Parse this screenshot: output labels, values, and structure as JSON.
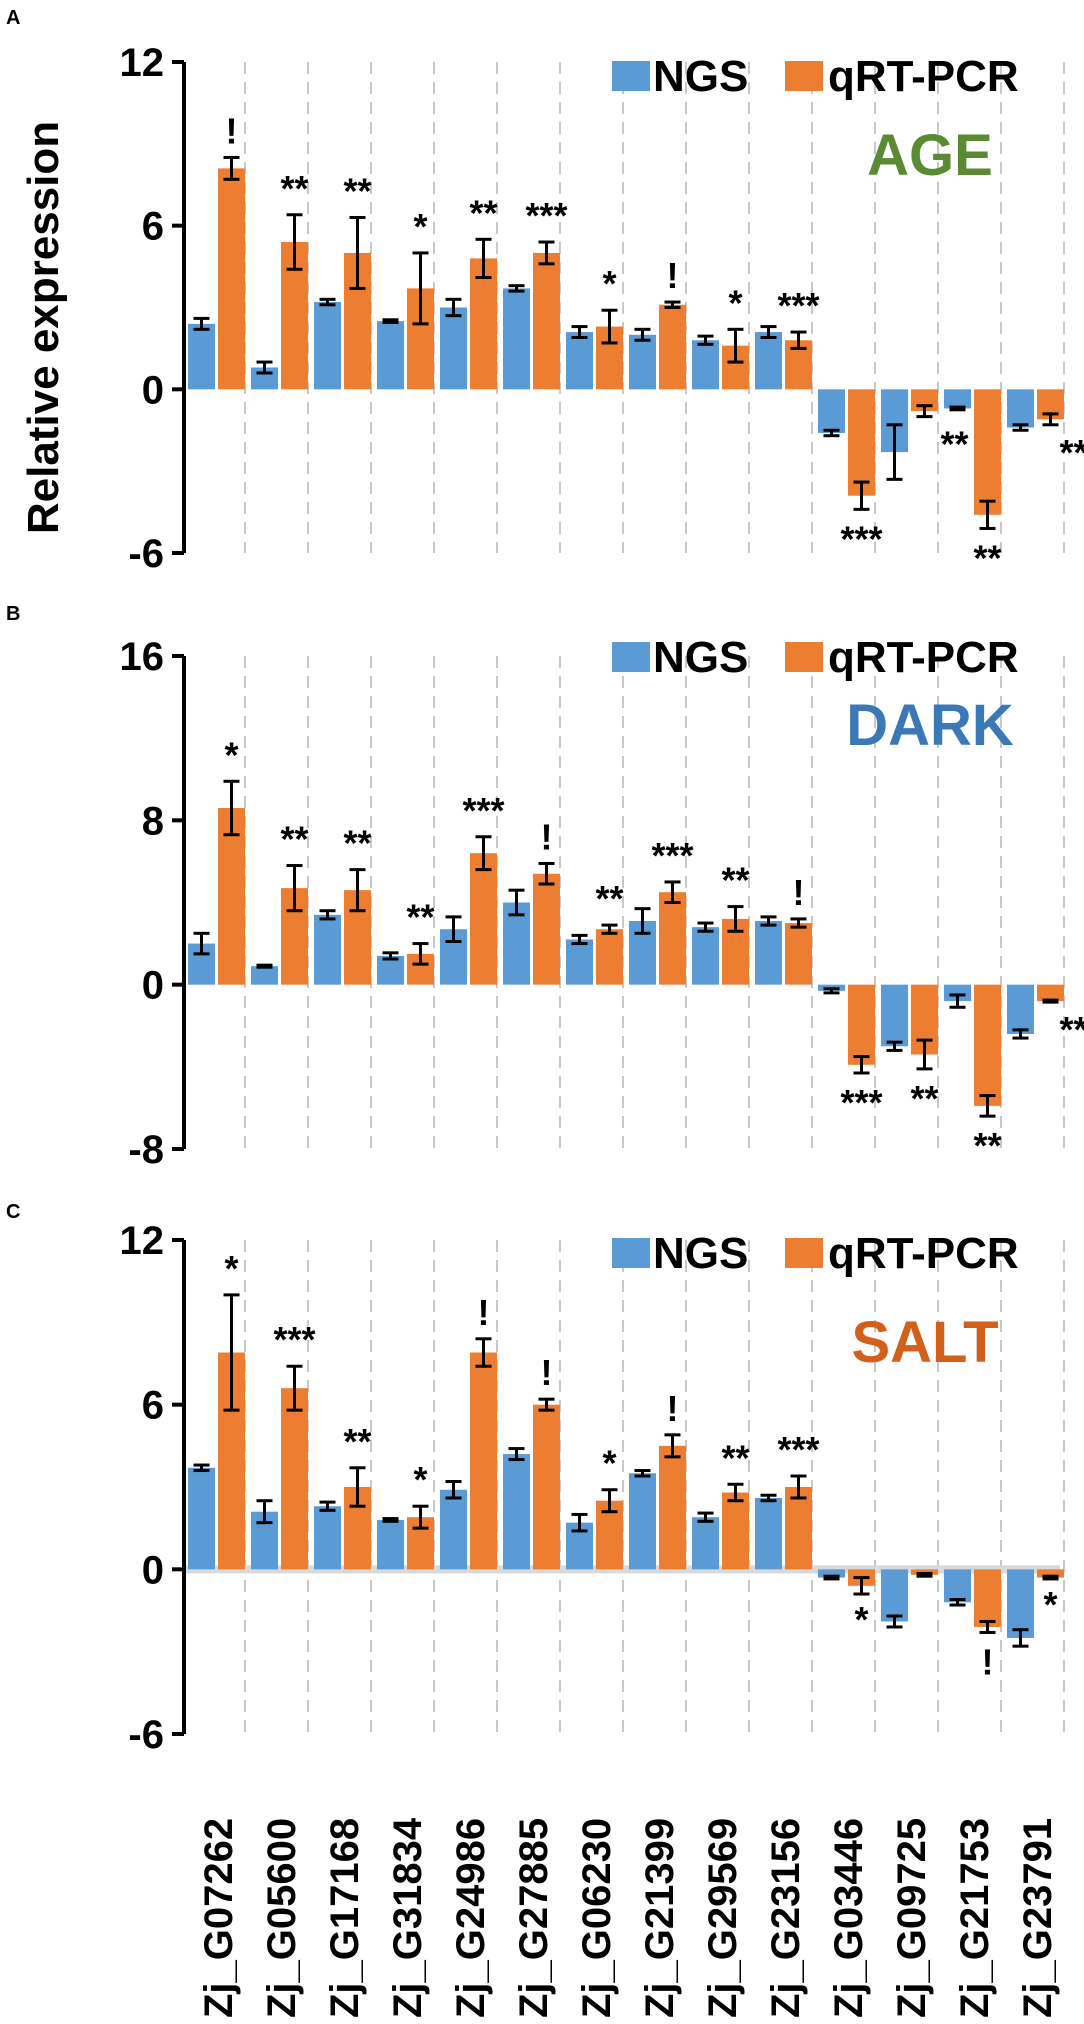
{
  "chart_data": [
    {
      "type": "bar",
      "panel": "A",
      "condition": "AGE",
      "condition_color": "#5a8a32",
      "ylabel": "Relative expression",
      "ylim": [
        -6,
        12
      ],
      "yticks": [
        "12",
        "6",
        "0",
        "-6"
      ],
      "ytick_values": [
        12,
        6,
        0,
        -6
      ],
      "legend": [
        "NGS",
        "qRT-PCR"
      ],
      "categories": [
        "Zj_G07262",
        "Zj_G05600",
        "Zj_G17168",
        "Zj_G31834",
        "Zj_G24986",
        "Zj_G27885",
        "Zj_G06230",
        "Zj_G21399",
        "Zj_G29569",
        "Zj_G23156",
        "Zj_G03446",
        "Zj_G09725",
        "Zj_G21753",
        "Zj_G23791"
      ],
      "series": [
        {
          "name": "NGS",
          "values": [
            2.4,
            0.8,
            3.2,
            2.5,
            3.0,
            3.7,
            2.1,
            2.0,
            1.8,
            2.1,
            -1.6,
            -2.3,
            -0.7,
            -1.4
          ],
          "errors": [
            0.2,
            0.2,
            0.1,
            0.05,
            0.3,
            0.1,
            0.2,
            0.2,
            0.15,
            0.2,
            0.1,
            1.0,
            0.05,
            0.1
          ]
        },
        {
          "name": "qRT-PCR",
          "values": [
            8.1,
            5.4,
            5.0,
            3.7,
            4.8,
            5.0,
            2.3,
            3.1,
            1.6,
            1.8,
            -3.9,
            -0.8,
            -4.6,
            -1.1
          ],
          "errors": [
            0.4,
            1.0,
            1.3,
            1.3,
            0.7,
            0.4,
            0.6,
            0.1,
            0.6,
            0.3,
            0.5,
            0.2,
            0.5,
            0.2
          ]
        }
      ],
      "significance": [
        "!",
        "**",
        "**",
        "*",
        "**",
        "***",
        "*",
        "!",
        "*",
        "***",
        "***",
        "**",
        "**",
        "***"
      ]
    },
    {
      "type": "bar",
      "panel": "B",
      "condition": "DARK",
      "condition_color": "#3a78b8",
      "ylabel": "",
      "ylim": [
        -8,
        16
      ],
      "yticks": [
        "16",
        "8",
        "0",
        "-8"
      ],
      "ytick_values": [
        16,
        8,
        0,
        -8
      ],
      "legend": [
        "NGS",
        "qRT-PCR"
      ],
      "categories": [
        "Zj_G07262",
        "Zj_G05600",
        "Zj_G17168",
        "Zj_G31834",
        "Zj_G24986",
        "Zj_G27885",
        "Zj_G06230",
        "Zj_G21399",
        "Zj_G29569",
        "Zj_G23156",
        "Zj_G03446",
        "Zj_G09725",
        "Zj_G21753",
        "Zj_G23791"
      ],
      "series": [
        {
          "name": "NGS",
          "values": [
            2.0,
            0.9,
            3.4,
            1.4,
            2.7,
            4.0,
            2.2,
            3.1,
            2.8,
            3.1,
            -0.3,
            -3.0,
            -0.8,
            -2.4
          ],
          "errors": [
            0.5,
            0.05,
            0.2,
            0.15,
            0.6,
            0.6,
            0.2,
            0.6,
            0.2,
            0.2,
            0.1,
            0.2,
            0.3,
            0.2
          ]
        },
        {
          "name": "qRT-PCR",
          "values": [
            8.6,
            4.7,
            4.6,
            1.5,
            6.4,
            5.4,
            2.7,
            4.5,
            3.2,
            3.0,
            -3.9,
            -3.4,
            -5.9,
            -0.8
          ],
          "errors": [
            1.3,
            1.1,
            1.0,
            0.5,
            0.8,
            0.5,
            0.2,
            0.5,
            0.6,
            0.2,
            0.4,
            0.7,
            0.5,
            0.05
          ]
        }
      ],
      "significance": [
        "*",
        "**",
        "**",
        "**",
        "***",
        "!",
        "**",
        "***",
        "**",
        "!",
        "***",
        "**",
        "**",
        "***"
      ]
    },
    {
      "type": "bar",
      "panel": "C",
      "condition": "SALT",
      "condition_color": "#d2601a",
      "ylabel": "",
      "ylim": [
        -6,
        12
      ],
      "yticks": [
        "12",
        "6",
        "0",
        "-6"
      ],
      "ytick_values": [
        12,
        6,
        0,
        -6
      ],
      "legend": [
        "NGS",
        "qRT-PCR"
      ],
      "categories": [
        "Zj_G07262",
        "Zj_G05600",
        "Zj_G17168",
        "Zj_G31834",
        "Zj_G24986",
        "Zj_G27885",
        "Zj_G06230",
        "Zj_G21399",
        "Zj_G29569",
        "Zj_G23156",
        "Zj_G03446",
        "Zj_G09725",
        "Zj_G21753",
        "Zj_G23791"
      ],
      "series": [
        {
          "name": "NGS",
          "values": [
            3.7,
            2.1,
            2.3,
            1.8,
            2.9,
            4.2,
            1.7,
            3.5,
            1.9,
            2.6,
            -0.3,
            -1.9,
            -1.2,
            -2.5
          ],
          "errors": [
            0.1,
            0.4,
            0.15,
            0.05,
            0.3,
            0.2,
            0.3,
            0.1,
            0.15,
            0.1,
            0.05,
            0.2,
            0.1,
            0.3
          ]
        },
        {
          "name": "qRT-PCR",
          "values": [
            7.9,
            6.6,
            3.0,
            1.9,
            7.9,
            6.0,
            2.5,
            4.5,
            2.8,
            3.0,
            -0.6,
            -0.2,
            -2.1,
            -0.3
          ],
          "errors": [
            2.1,
            0.8,
            0.7,
            0.4,
            0.5,
            0.2,
            0.4,
            0.4,
            0.3,
            0.4,
            0.3,
            0.05,
            0.2,
            0.05
          ]
        }
      ],
      "significance": [
        "*",
        "***",
        "**",
        "*",
        "!",
        "!",
        "*",
        "!",
        "**",
        "***",
        "*",
        "",
        "!",
        "*"
      ]
    }
  ],
  "colors": {
    "ngs": "#5b9bd5",
    "qrt": "#ed7d31",
    "grid": "#c8c8c8",
    "axis": "#000000",
    "zero_line_salt": "#d9d9d9"
  }
}
